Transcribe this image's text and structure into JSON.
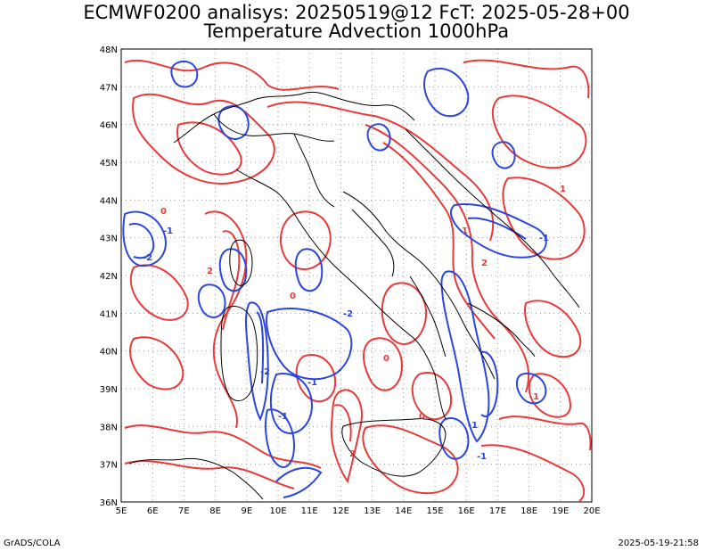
{
  "title_line1": "ECMWF0200 analisys: 20250519@12 FcT: 2025-05-28+00",
  "title_line2": "Temperature Advection 1000hPa",
  "credit_left": "GrADS/COLA",
  "credit_right": "2025-05-19-21:58",
  "map": {
    "lon_range": [
      5,
      20
    ],
    "lat_range": [
      36,
      48
    ],
    "lon_ticks": [
      "5E",
      "6E",
      "7E",
      "8E",
      "9E",
      "10E",
      "11E",
      "12E",
      "13E",
      "14E",
      "15E",
      "16E",
      "17E",
      "18E",
      "19E",
      "20E"
    ],
    "lat_ticks": [
      "36N",
      "37N",
      "38N",
      "39N",
      "40N",
      "41N",
      "42N",
      "43N",
      "44N",
      "45N",
      "46N",
      "47N",
      "48N"
    ],
    "grid": "dotted",
    "colors": {
      "warm_advection": "#e83a3a",
      "cold_advection": "#2b46e0",
      "coastline": "#000000",
      "gridline": "#9a9aa8"
    }
  }
}
